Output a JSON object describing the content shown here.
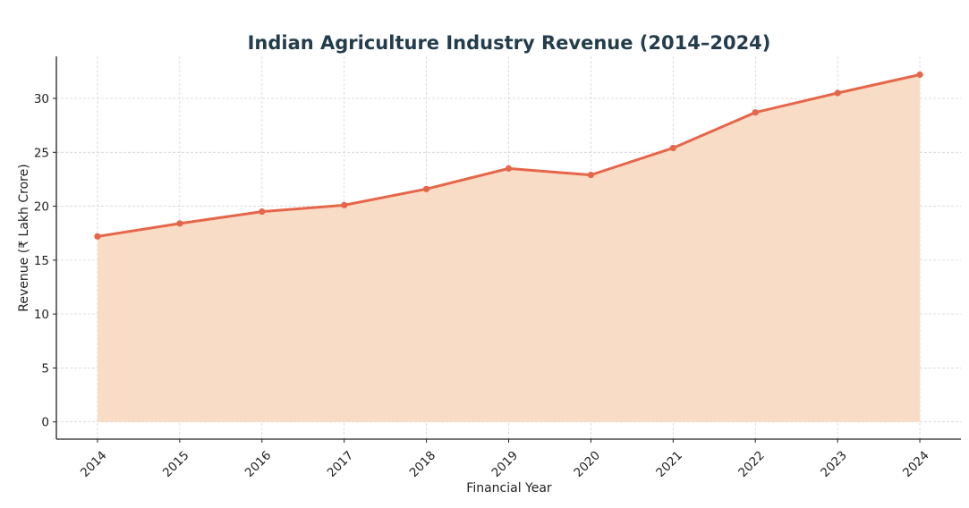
{
  "chart_data": {
    "type": "area",
    "title": "Indian Agriculture Industry Revenue (2014–2024)",
    "xlabel": "Financial Year",
    "ylabel": "Revenue (₹ Lakh Crore)",
    "x": [
      2014,
      2015,
      2016,
      2017,
      2018,
      2019,
      2020,
      2021,
      2022,
      2023,
      2024
    ],
    "x_tick_labels": [
      "2014",
      "2015",
      "2016",
      "2017",
      "2018",
      "2019",
      "2020",
      "2021",
      "2022",
      "2023",
      "2024"
    ],
    "series": [
      {
        "name": "Revenue",
        "values": [
          17.2,
          18.4,
          19.5,
          20.1,
          21.6,
          23.5,
          22.9,
          25.4,
          28.7,
          30.5,
          32.2
        ],
        "line_color": "#e5664a",
        "fill_color": "#f9dcc5",
        "marker": "circle"
      }
    ],
    "y_ticks": [
      0,
      5,
      10,
      15,
      20,
      25,
      30
    ],
    "y_tick_labels": [
      "0",
      "5",
      "10",
      "15",
      "20",
      "25",
      "30"
    ],
    "xlim": [
      2013.5,
      2024.5
    ],
    "ylim": [
      -1.6,
      33.9
    ],
    "grid": true,
    "legend": "none",
    "x_tick_rotation_deg": 45,
    "colors": {
      "title": "#233d4d",
      "line": "#e5664a",
      "fill": "#f9dcc5",
      "grid": "#d4d4d4"
    }
  }
}
